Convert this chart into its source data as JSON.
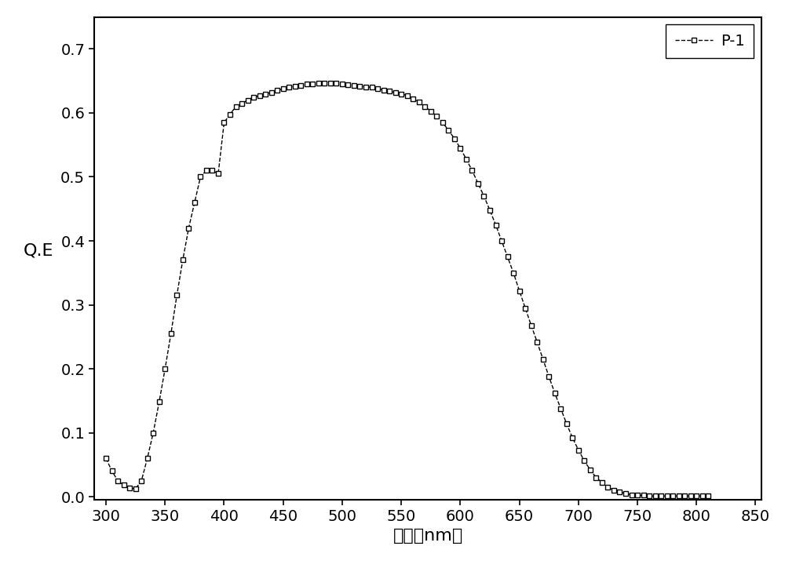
{
  "title": "",
  "xlabel": "波长（nm）",
  "ylabel": "Q.E",
  "xlim": [
    290,
    855
  ],
  "ylim": [
    -0.005,
    0.75
  ],
  "xticks": [
    300,
    350,
    400,
    450,
    500,
    550,
    600,
    650,
    700,
    750,
    800,
    850
  ],
  "yticks": [
    0.0,
    0.1,
    0.2,
    0.3,
    0.4,
    0.5,
    0.6,
    0.7
  ],
  "legend_label": "P-1",
  "line_color": "#000000",
  "marker": "s",
  "marker_size": 5,
  "marker_facecolor": "white",
  "marker_edgecolor": "#000000",
  "linestyle": "--",
  "linewidth": 1.0,
  "background_color": "#ffffff",
  "data_x": [
    300,
    305,
    310,
    315,
    320,
    325,
    330,
    335,
    340,
    345,
    350,
    355,
    360,
    365,
    370,
    375,
    380,
    385,
    390,
    395,
    400,
    405,
    410,
    415,
    420,
    425,
    430,
    435,
    440,
    445,
    450,
    455,
    460,
    465,
    470,
    475,
    480,
    485,
    490,
    495,
    500,
    505,
    510,
    515,
    520,
    525,
    530,
    535,
    540,
    545,
    550,
    555,
    560,
    565,
    570,
    575,
    580,
    585,
    590,
    595,
    600,
    605,
    610,
    615,
    620,
    625,
    630,
    635,
    640,
    645,
    650,
    655,
    660,
    665,
    670,
    675,
    680,
    685,
    690,
    695,
    700,
    705,
    710,
    715,
    720,
    725,
    730,
    735,
    740,
    745,
    750,
    755,
    760,
    765,
    770,
    775,
    780,
    785,
    790,
    795,
    800,
    805,
    810
  ],
  "data_y": [
    0.06,
    0.04,
    0.025,
    0.018,
    0.014,
    0.012,
    0.025,
    0.06,
    0.1,
    0.148,
    0.2,
    0.255,
    0.315,
    0.37,
    0.42,
    0.46,
    0.5,
    0.51,
    0.51,
    0.505,
    0.585,
    0.598,
    0.61,
    0.615,
    0.62,
    0.625,
    0.627,
    0.63,
    0.632,
    0.635,
    0.638,
    0.64,
    0.642,
    0.643,
    0.645,
    0.645,
    0.646,
    0.646,
    0.646,
    0.646,
    0.645,
    0.644,
    0.643,
    0.642,
    0.641,
    0.64,
    0.638,
    0.636,
    0.634,
    0.632,
    0.63,
    0.627,
    0.622,
    0.617,
    0.61,
    0.603,
    0.595,
    0.585,
    0.573,
    0.56,
    0.545,
    0.528,
    0.51,
    0.49,
    0.47,
    0.448,
    0.425,
    0.4,
    0.375,
    0.35,
    0.322,
    0.295,
    0.268,
    0.242,
    0.215,
    0.188,
    0.162,
    0.138,
    0.114,
    0.092,
    0.073,
    0.056,
    0.042,
    0.03,
    0.022,
    0.015,
    0.01,
    0.007,
    0.005,
    0.003,
    0.002,
    0.002,
    0.001,
    0.001,
    0.001,
    0.001,
    0.001,
    0.001,
    0.001,
    0.001,
    0.001,
    0.001,
    0.001
  ]
}
